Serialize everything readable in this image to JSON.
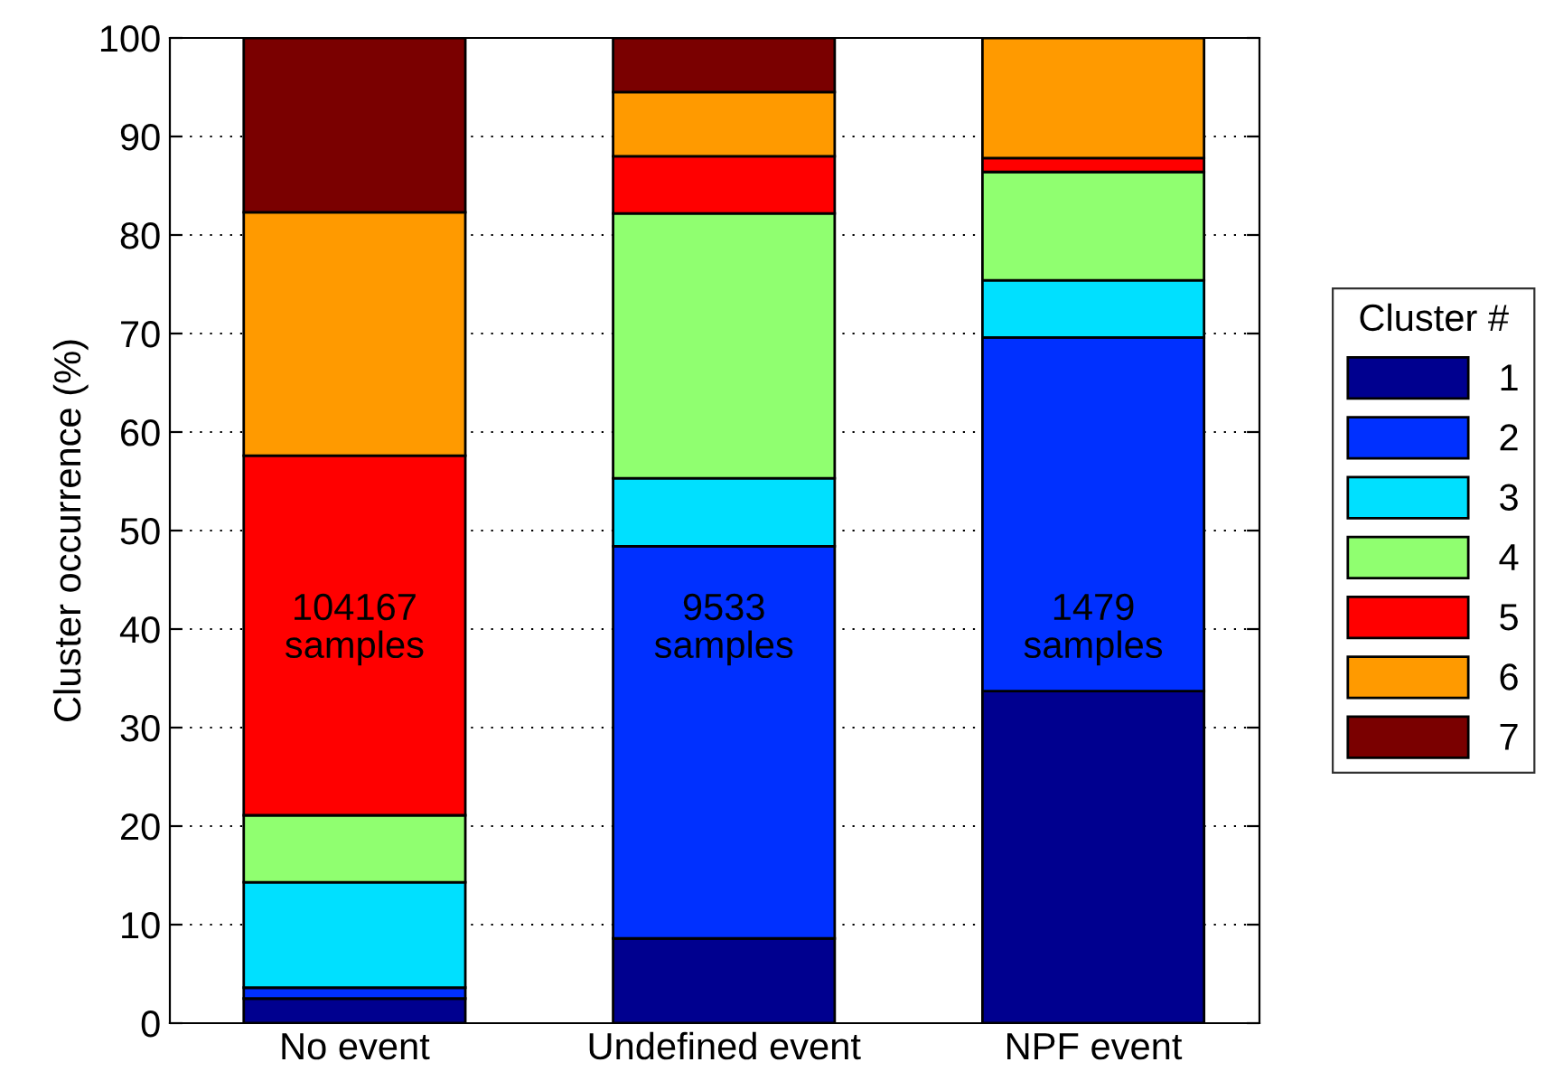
{
  "chart_data": {
    "type": "bar",
    "stacked": true,
    "ylabel": "Cluster occurrence (%)",
    "legend_title": "Cluster #",
    "categories": [
      "No event",
      "Undefined event",
      "NPF event"
    ],
    "series": [
      {
        "name": "1",
        "color": "#00008f",
        "values": [
          2.5,
          8.6,
          33.7
        ]
      },
      {
        "name": "2",
        "color": "#0030ff",
        "values": [
          1.1,
          39.8,
          35.9
        ]
      },
      {
        "name": "3",
        "color": "#00e0ff",
        "values": [
          10.7,
          6.9,
          5.8
        ]
      },
      {
        "name": "4",
        "color": "#90ff70",
        "values": [
          6.8,
          26.9,
          11.0
        ]
      },
      {
        "name": "5",
        "color": "#ff0000",
        "values": [
          36.5,
          5.8,
          1.4
        ]
      },
      {
        "name": "6",
        "color": "#ff9a00",
        "values": [
          24.7,
          6.5,
          12.2
        ]
      },
      {
        "name": "7",
        "color": "#7a0000",
        "values": [
          17.7,
          5.5,
          null
        ]
      }
    ],
    "ylim": [
      0,
      100
    ],
    "yticks": [
      0,
      10,
      20,
      30,
      40,
      50,
      60,
      70,
      80,
      90,
      100
    ],
    "grid": "y",
    "legend": "right",
    "annotations": [
      "104167\nsamples",
      "9533\nsamples",
      "1479\nsamples"
    ]
  }
}
